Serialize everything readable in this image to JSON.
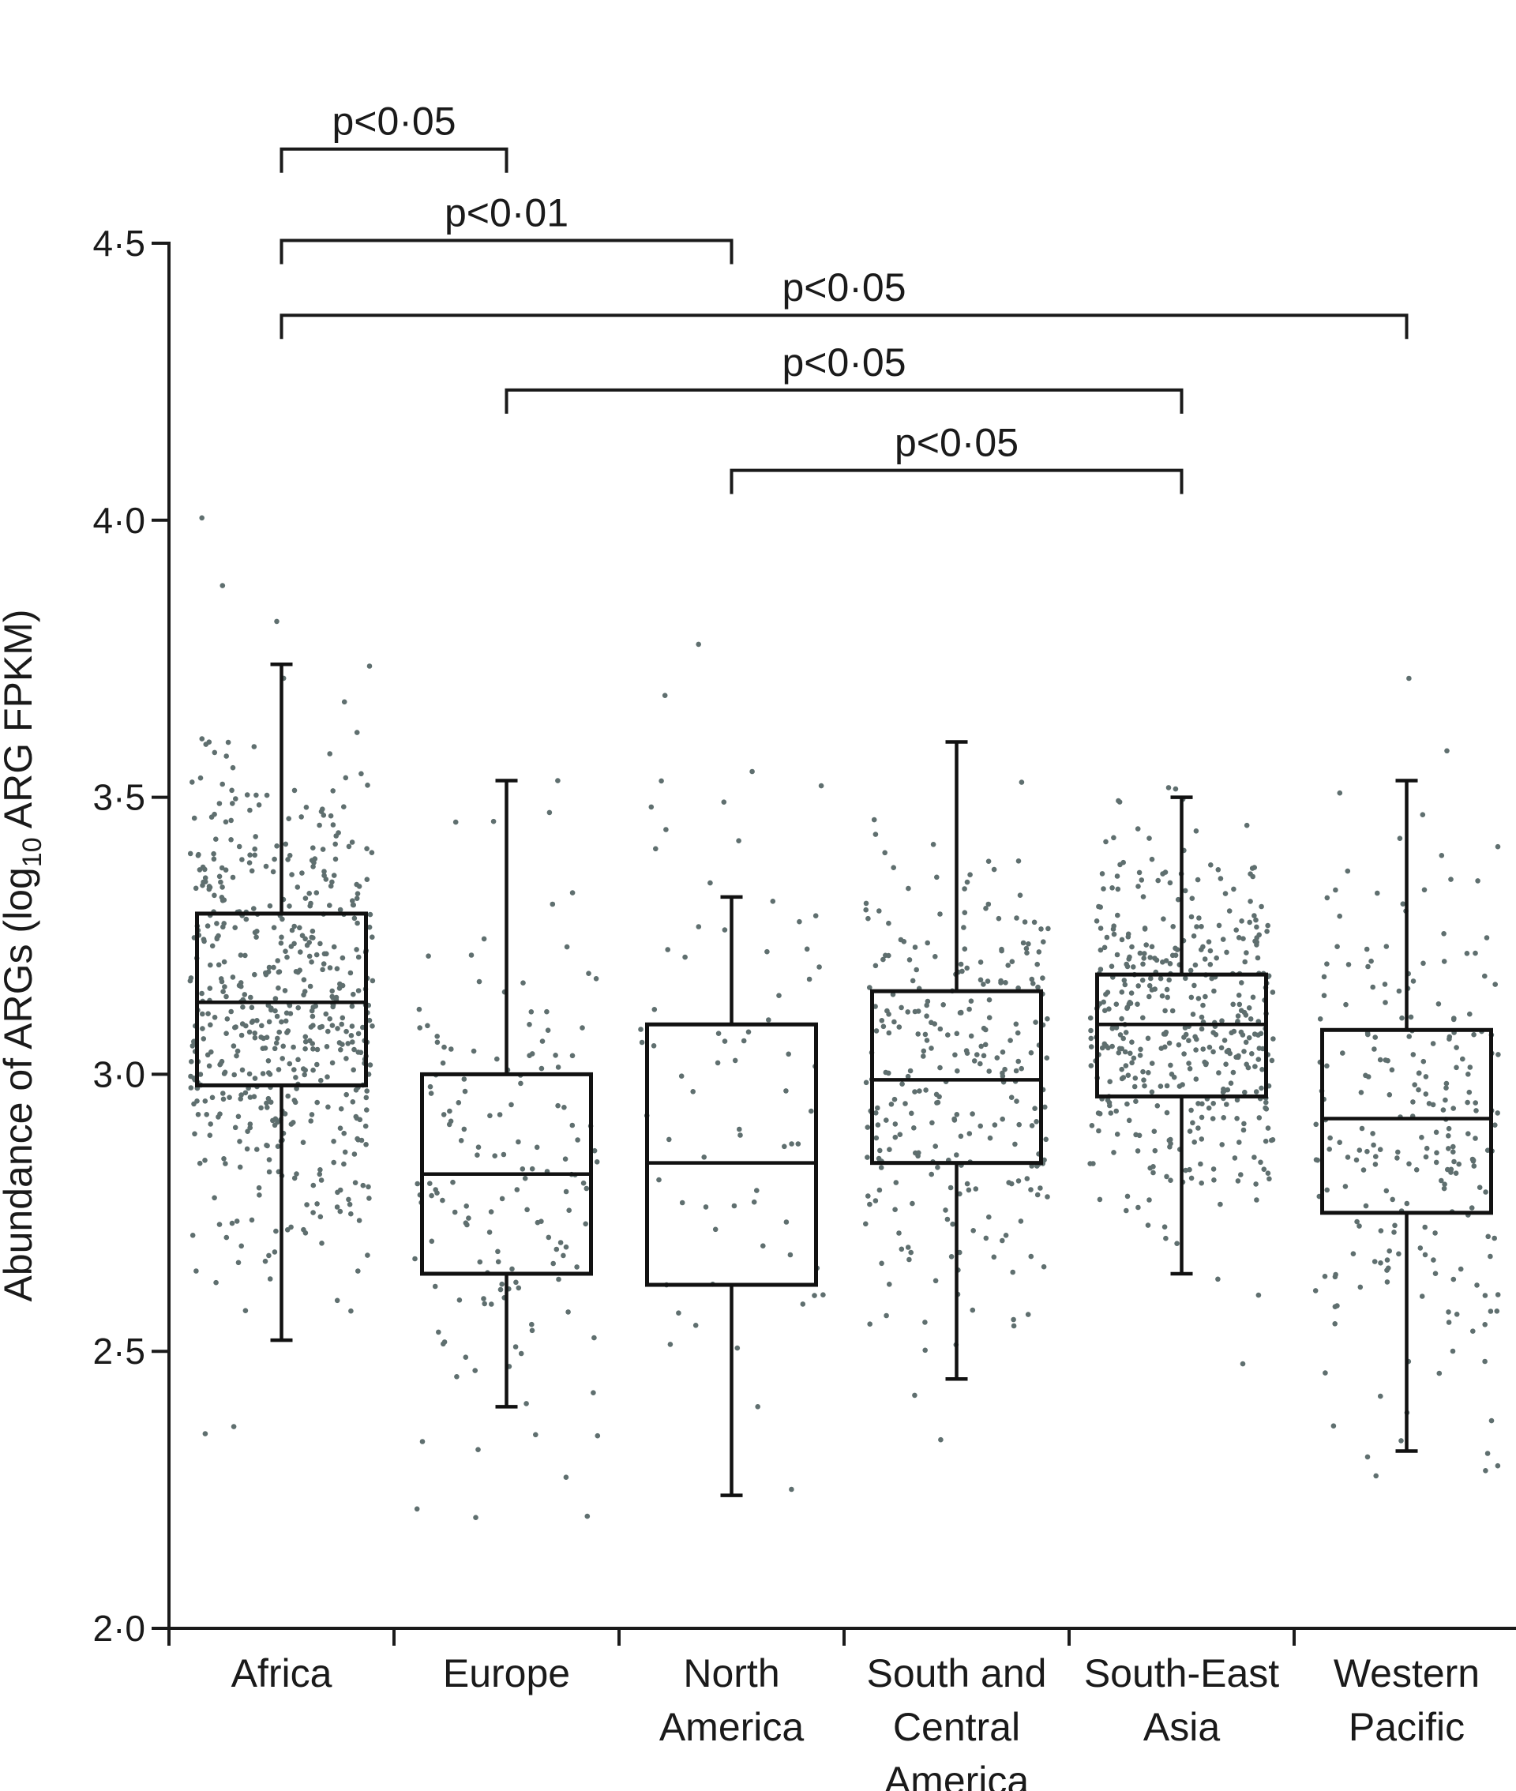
{
  "chart_data": {
    "type": "box",
    "ylabel_main": "Abundance of ARGs (log",
    "ylabel_sub": "10",
    "ylabel_rest": " ARG FPKM)",
    "ylim": [
      2.0,
      4.5
    ],
    "yticks": [
      {
        "value": 2.0,
        "label": "2·0"
      },
      {
        "value": 2.5,
        "label": "2·5"
      },
      {
        "value": 3.0,
        "label": "3·0"
      },
      {
        "value": 3.5,
        "label": "3·5"
      },
      {
        "value": 4.0,
        "label": "4·0"
      },
      {
        "value": 4.5,
        "label": "4·5"
      }
    ],
    "categories": [
      {
        "lines": [
          "Africa"
        ]
      },
      {
        "lines": [
          "Europe"
        ]
      },
      {
        "lines": [
          "North",
          "America"
        ]
      },
      {
        "lines": [
          "South and",
          "Central",
          "America"
        ]
      },
      {
        "lines": [
          "South-East",
          "Asia"
        ]
      },
      {
        "lines": [
          "Western",
          "Pacific"
        ]
      }
    ],
    "boxes": [
      {
        "min": 2.52,
        "q1": 2.98,
        "median": 3.13,
        "q3": 3.29,
        "max": 3.74,
        "n_points": 560
      },
      {
        "min": 2.4,
        "q1": 2.64,
        "median": 2.82,
        "q3": 3.0,
        "max": 3.53,
        "n_points": 150
      },
      {
        "min": 2.24,
        "q1": 2.62,
        "median": 2.84,
        "q3": 3.09,
        "max": 3.32,
        "n_points": 70
      },
      {
        "min": 2.45,
        "q1": 2.84,
        "median": 2.99,
        "q3": 3.15,
        "max": 3.6,
        "n_points": 280
      },
      {
        "min": 2.64,
        "q1": 2.96,
        "median": 3.09,
        "q3": 3.18,
        "max": 3.5,
        "n_points": 430
      },
      {
        "min": 2.32,
        "q1": 2.75,
        "median": 2.92,
        "q3": 3.08,
        "max": 3.53,
        "n_points": 230
      }
    ],
    "point_color": "#5f6f6f",
    "significance": [
      {
        "from": 0,
        "to": 1,
        "label": "p<0·05",
        "level": 4.67
      },
      {
        "from": 0,
        "to": 2,
        "label": "p<0·01",
        "level": 4.505
      },
      {
        "from": 0,
        "to": 5,
        "label": "p<0·05",
        "level": 4.37
      },
      {
        "from": 1,
        "to": 4,
        "label": "p<0·05",
        "level": 4.235
      },
      {
        "from": 2,
        "to": 4,
        "label": "p<0·05",
        "level": 4.09
      }
    ]
  }
}
